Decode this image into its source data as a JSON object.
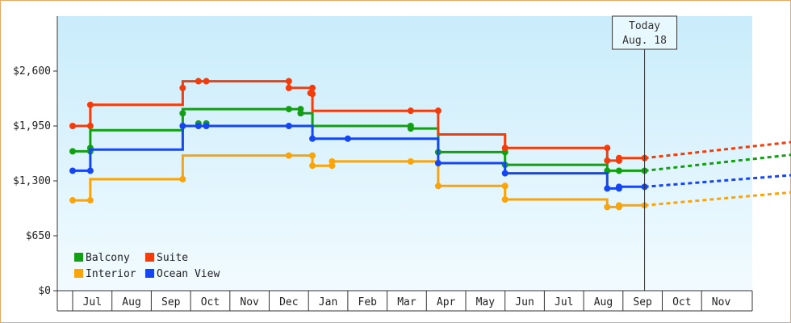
{
  "chart_data": {
    "type": "line",
    "subtype": "step",
    "title": "",
    "xlabel": "",
    "ylabel": "",
    "ylim": [
      0,
      3250
    ],
    "yticks": [
      {
        "value": 0,
        "label": "$0"
      },
      {
        "value": 650,
        "label": "$650"
      },
      {
        "value": 1300,
        "label": "$1,300"
      },
      {
        "value": 1950,
        "label": "$1,950"
      },
      {
        "value": 2600,
        "label": "$2,600"
      }
    ],
    "months": [
      "Jul",
      "Aug",
      "Sep",
      "Oct",
      "Nov",
      "Dec",
      "Jan",
      "Feb",
      "Mar",
      "Apr",
      "May",
      "Jun",
      "Jul",
      "Aug",
      "Sep",
      "Oct",
      "Nov"
    ],
    "grid": false,
    "background": "light-blue-gradient",
    "legend_placement": "bottom-left",
    "today_marker": {
      "line1": "Today",
      "line2": "Aug. 18",
      "x": 14.55
    },
    "forecast_start": 14.55,
    "forecast_end": 18.9,
    "series": [
      {
        "name": "Balcony",
        "color": "#139f13",
        "points": [
          [
            0.0,
            1650
          ],
          [
            0.45,
            1650
          ],
          [
            0.45,
            1650
          ],
          [
            0.45,
            1900
          ],
          [
            2.8,
            1900
          ],
          [
            2.8,
            2150
          ],
          [
            5.5,
            2150
          ],
          [
            5.8,
            2150
          ],
          [
            5.8,
            2100
          ],
          [
            6.1,
            2100
          ],
          [
            6.1,
            1950
          ],
          [
            8.5,
            1950
          ],
          [
            8.6,
            1950
          ],
          [
            8.6,
            1920
          ],
          [
            9.3,
            1920
          ],
          [
            9.3,
            1640
          ],
          [
            11.0,
            1640
          ],
          [
            11.0,
            1490
          ],
          [
            13.6,
            1490
          ],
          [
            13.6,
            1420
          ],
          [
            13.9,
            1420
          ],
          [
            13.9,
            1420
          ],
          [
            14.55,
            1420
          ]
        ],
        "markers": [
          [
            0.0,
            1650
          ],
          [
            0.45,
            1650
          ],
          [
            0.45,
            1690
          ],
          [
            2.8,
            2100
          ],
          [
            3.2,
            1980
          ],
          [
            3.4,
            1980
          ],
          [
            5.5,
            2150
          ],
          [
            5.8,
            2150
          ],
          [
            5.8,
            2100
          ],
          [
            8.6,
            1950
          ],
          [
            8.6,
            1920
          ],
          [
            9.3,
            1640
          ],
          [
            11.0,
            1640
          ],
          [
            11.0,
            1490
          ],
          [
            13.6,
            1420
          ],
          [
            13.9,
            1420
          ],
          [
            14.55,
            1420
          ]
        ],
        "forecast": [
          [
            14.55,
            1420
          ],
          [
            18.9,
            1640
          ]
        ]
      },
      {
        "name": "Suite",
        "color": "#f23c0c",
        "points": [
          [
            0.0,
            1950
          ],
          [
            0.45,
            1950
          ],
          [
            0.45,
            2200
          ],
          [
            2.8,
            2200
          ],
          [
            2.8,
            2480
          ],
          [
            5.5,
            2480
          ],
          [
            5.5,
            2400
          ],
          [
            6.1,
            2400
          ],
          [
            6.1,
            2130
          ],
          [
            8.6,
            2130
          ],
          [
            9.3,
            2130
          ],
          [
            9.3,
            1850
          ],
          [
            11.0,
            1850
          ],
          [
            11.0,
            1690
          ],
          [
            13.6,
            1690
          ],
          [
            13.6,
            1540
          ],
          [
            13.9,
            1540
          ],
          [
            13.9,
            1570
          ],
          [
            14.55,
            1570
          ]
        ],
        "markers": [
          [
            0.0,
            1950
          ],
          [
            0.45,
            1950
          ],
          [
            0.45,
            2200
          ],
          [
            2.8,
            2400
          ],
          [
            3.2,
            2480
          ],
          [
            3.4,
            2480
          ],
          [
            5.5,
            2480
          ],
          [
            5.5,
            2400
          ],
          [
            6.1,
            2400
          ],
          [
            6.05,
            2340
          ],
          [
            6.1,
            2330
          ],
          [
            8.6,
            2130
          ],
          [
            9.3,
            2130
          ],
          [
            11.0,
            1690
          ],
          [
            13.6,
            1690
          ],
          [
            13.6,
            1540
          ],
          [
            13.9,
            1540
          ],
          [
            13.9,
            1570
          ],
          [
            14.55,
            1570
          ]
        ],
        "forecast": [
          [
            14.55,
            1570
          ],
          [
            18.9,
            1790
          ]
        ]
      },
      {
        "name": "Interior",
        "color": "#f9a40b",
        "points": [
          [
            0.0,
            1070
          ],
          [
            0.45,
            1070
          ],
          [
            0.45,
            1320
          ],
          [
            2.8,
            1320
          ],
          [
            2.8,
            1600
          ],
          [
            6.1,
            1600
          ],
          [
            6.1,
            1480
          ],
          [
            6.6,
            1480
          ],
          [
            6.6,
            1530
          ],
          [
            9.3,
            1530
          ],
          [
            9.3,
            1240
          ],
          [
            11.0,
            1240
          ],
          [
            11.0,
            1080
          ],
          [
            13.6,
            1080
          ],
          [
            13.6,
            990
          ],
          [
            13.9,
            990
          ],
          [
            13.9,
            1010
          ],
          [
            14.55,
            1010
          ]
        ],
        "markers": [
          [
            0.0,
            1070
          ],
          [
            0.45,
            1070
          ],
          [
            2.8,
            1320
          ],
          [
            5.5,
            1600
          ],
          [
            6.1,
            1600
          ],
          [
            6.1,
            1480
          ],
          [
            6.6,
            1480
          ],
          [
            6.6,
            1530
          ],
          [
            8.6,
            1530
          ],
          [
            9.3,
            1240
          ],
          [
            11.0,
            1240
          ],
          [
            11.0,
            1080
          ],
          [
            13.6,
            990
          ],
          [
            13.9,
            990
          ],
          [
            13.9,
            1010
          ],
          [
            14.55,
            1010
          ]
        ],
        "forecast": [
          [
            14.55,
            1010
          ],
          [
            18.9,
            1190
          ]
        ]
      },
      {
        "name": "Ocean View",
        "color": "#1646f0",
        "points": [
          [
            0.0,
            1420
          ],
          [
            0.45,
            1420
          ],
          [
            0.45,
            1670
          ],
          [
            2.8,
            1670
          ],
          [
            2.8,
            1950
          ],
          [
            6.1,
            1950
          ],
          [
            6.1,
            1800
          ],
          [
            9.3,
            1800
          ],
          [
            9.3,
            1510
          ],
          [
            11.0,
            1510
          ],
          [
            11.0,
            1390
          ],
          [
            13.6,
            1390
          ],
          [
            13.6,
            1210
          ],
          [
            13.9,
            1210
          ],
          [
            13.9,
            1230
          ],
          [
            14.55,
            1230
          ]
        ],
        "markers": [
          [
            0.0,
            1420
          ],
          [
            0.45,
            1420
          ],
          [
            2.8,
            1950
          ],
          [
            3.2,
            1950
          ],
          [
            3.4,
            1950
          ],
          [
            5.5,
            1950
          ],
          [
            6.1,
            1800
          ],
          [
            7.0,
            1800
          ],
          [
            9.3,
            1510
          ],
          [
            11.0,
            1390
          ],
          [
            13.6,
            1210
          ],
          [
            13.9,
            1210
          ],
          [
            13.9,
            1230
          ],
          [
            14.55,
            1230
          ]
        ],
        "forecast": [
          [
            14.55,
            1230
          ],
          [
            18.9,
            1390
          ]
        ]
      }
    ]
  }
}
